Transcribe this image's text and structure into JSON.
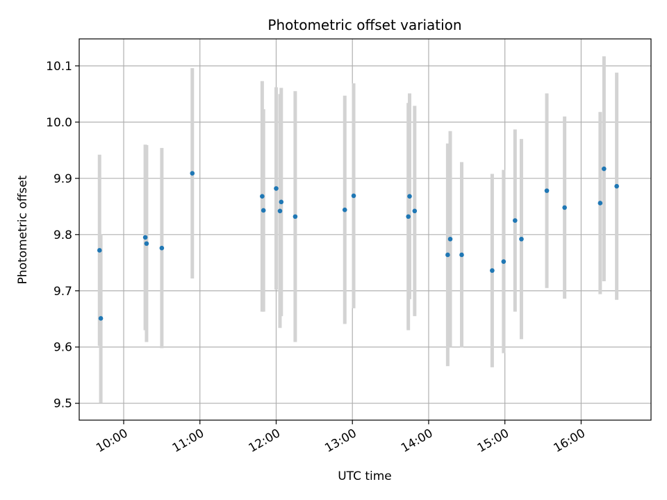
{
  "chart_data": {
    "type": "scatter",
    "title": "Photometric offset variation",
    "xlabel": "UTC time",
    "ylabel": "Photometric offset",
    "x_tick_labels": [
      "10:00",
      "11:00",
      "12:00",
      "13:00",
      "14:00",
      "15:00",
      "16:00"
    ],
    "y_tick_labels": [
      "9.5",
      "9.6",
      "9.7",
      "9.8",
      "9.9",
      "10.0",
      "10.1"
    ],
    "xlim": [
      "09:25",
      "16:55"
    ],
    "ylim": [
      9.47,
      10.148
    ],
    "grid": true,
    "colors": {
      "point": "#1f77b4",
      "errorbar": "#d3d3d3",
      "grid": "#b0b0b0"
    },
    "series": [
      {
        "points": [
          {
            "x": "09:41",
            "y": 9.772,
            "err": 0.17
          },
          {
            "x": "09:42",
            "y": 9.651,
            "err": 0.15
          },
          {
            "x": "10:17",
            "y": 9.795,
            "err": 0.165
          },
          {
            "x": "10:18",
            "y": 9.784,
            "err": 0.175
          },
          {
            "x": "10:30",
            "y": 9.776,
            "err": 0.178
          },
          {
            "x": "10:54",
            "y": 9.909,
            "err": 0.187
          },
          {
            "x": "11:49",
            "y": 9.868,
            "err": 0.205
          },
          {
            "x": "11:50",
            "y": 9.843,
            "err": 0.18
          },
          {
            "x": "12:00",
            "y": 9.882,
            "err": 0.18
          },
          {
            "x": "12:03",
            "y": 9.842,
            "err": 0.208
          },
          {
            "x": "12:04",
            "y": 9.858,
            "err": 0.203
          },
          {
            "x": "12:15",
            "y": 9.832,
            "err": 0.223
          },
          {
            "x": "12:54",
            "y": 9.844,
            "err": 0.203
          },
          {
            "x": "13:01",
            "y": 9.869,
            "err": 0.2
          },
          {
            "x": "13:44",
            "y": 9.832,
            "err": 0.202
          },
          {
            "x": "13:45",
            "y": 9.868,
            "err": 0.183
          },
          {
            "x": "13:49",
            "y": 9.842,
            "err": 0.187
          },
          {
            "x": "14:15",
            "y": 9.764,
            "err": 0.198
          },
          {
            "x": "14:17",
            "y": 9.792,
            "err": 0.192
          },
          {
            "x": "14:26",
            "y": 9.764,
            "err": 0.165
          },
          {
            "x": "14:50",
            "y": 9.736,
            "err": 0.172
          },
          {
            "x": "14:59",
            "y": 9.752,
            "err": 0.163
          },
          {
            "x": "15:08",
            "y": 9.825,
            "err": 0.162
          },
          {
            "x": "15:13",
            "y": 9.792,
            "err": 0.178
          },
          {
            "x": "15:33",
            "y": 9.878,
            "err": 0.173
          },
          {
            "x": "15:47",
            "y": 9.848,
            "err": 0.162
          },
          {
            "x": "16:15",
            "y": 9.856,
            "err": 0.162
          },
          {
            "x": "16:18",
            "y": 9.917,
            "err": 0.2
          },
          {
            "x": "16:28",
            "y": 9.886,
            "err": 0.202
          }
        ]
      }
    ]
  }
}
